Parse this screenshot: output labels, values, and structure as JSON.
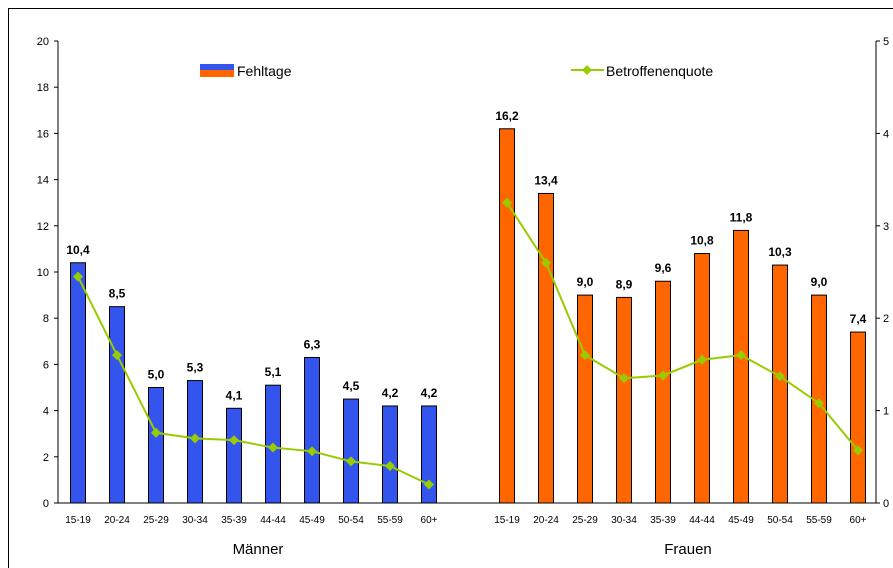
{
  "chart_data": {
    "type": "bar+line",
    "groups": [
      {
        "label": "Männer",
        "categories": [
          "15-19",
          "20-24",
          "25-29",
          "30-34",
          "35-39",
          "44-44",
          "45-49",
          "50-54",
          "55-59",
          "60+"
        ],
        "bar_values": [
          10.4,
          8.5,
          5.0,
          5.3,
          4.1,
          5.1,
          6.3,
          4.5,
          4.2,
          4.2
        ],
        "bar_labels": [
          "10,4",
          "8,5",
          "5,0",
          "5,3",
          "4,1",
          "5,1",
          "6,3",
          "4,5",
          "4,2",
          "4,2"
        ],
        "line_values": [
          24.5,
          16.0,
          7.6,
          7.0,
          6.8,
          6.0,
          5.6,
          4.5,
          4.0,
          2.0
        ],
        "bar_color": "#3355ee"
      },
      {
        "label": "Frauen",
        "categories": [
          "15-19",
          "20-24",
          "25-29",
          "30-34",
          "35-39",
          "44-44",
          "45-49",
          "50-54",
          "55-59",
          "60+"
        ],
        "bar_values": [
          16.2,
          13.4,
          9.0,
          8.9,
          9.6,
          10.8,
          11.8,
          10.3,
          9.0,
          7.4
        ],
        "bar_labels": [
          "16,2",
          "13,4",
          "9,0",
          "8,9",
          "9,6",
          "10,8",
          "11,8",
          "10,3",
          "9,0",
          "7,4"
        ],
        "line_values": [
          32.5,
          26.0,
          16.0,
          13.5,
          13.8,
          15.5,
          16.0,
          13.7,
          10.8,
          5.7
        ],
        "bar_color": "#ff6600"
      }
    ],
    "y_left": {
      "min": 0,
      "max": 20,
      "ticks": [
        "0",
        "2",
        "4",
        "6",
        "8",
        "10",
        "12",
        "14",
        "16",
        "18",
        "20"
      ]
    },
    "y_right": {
      "min": 0,
      "max": 50,
      "ticks": [
        "0",
        "1",
        "2",
        "3",
        "4",
        "5"
      ]
    },
    "legend": {
      "bar_name": "Fehltage",
      "line_name": "Betroffenenquote",
      "placement": "top"
    },
    "line_color": "#99cc00"
  }
}
